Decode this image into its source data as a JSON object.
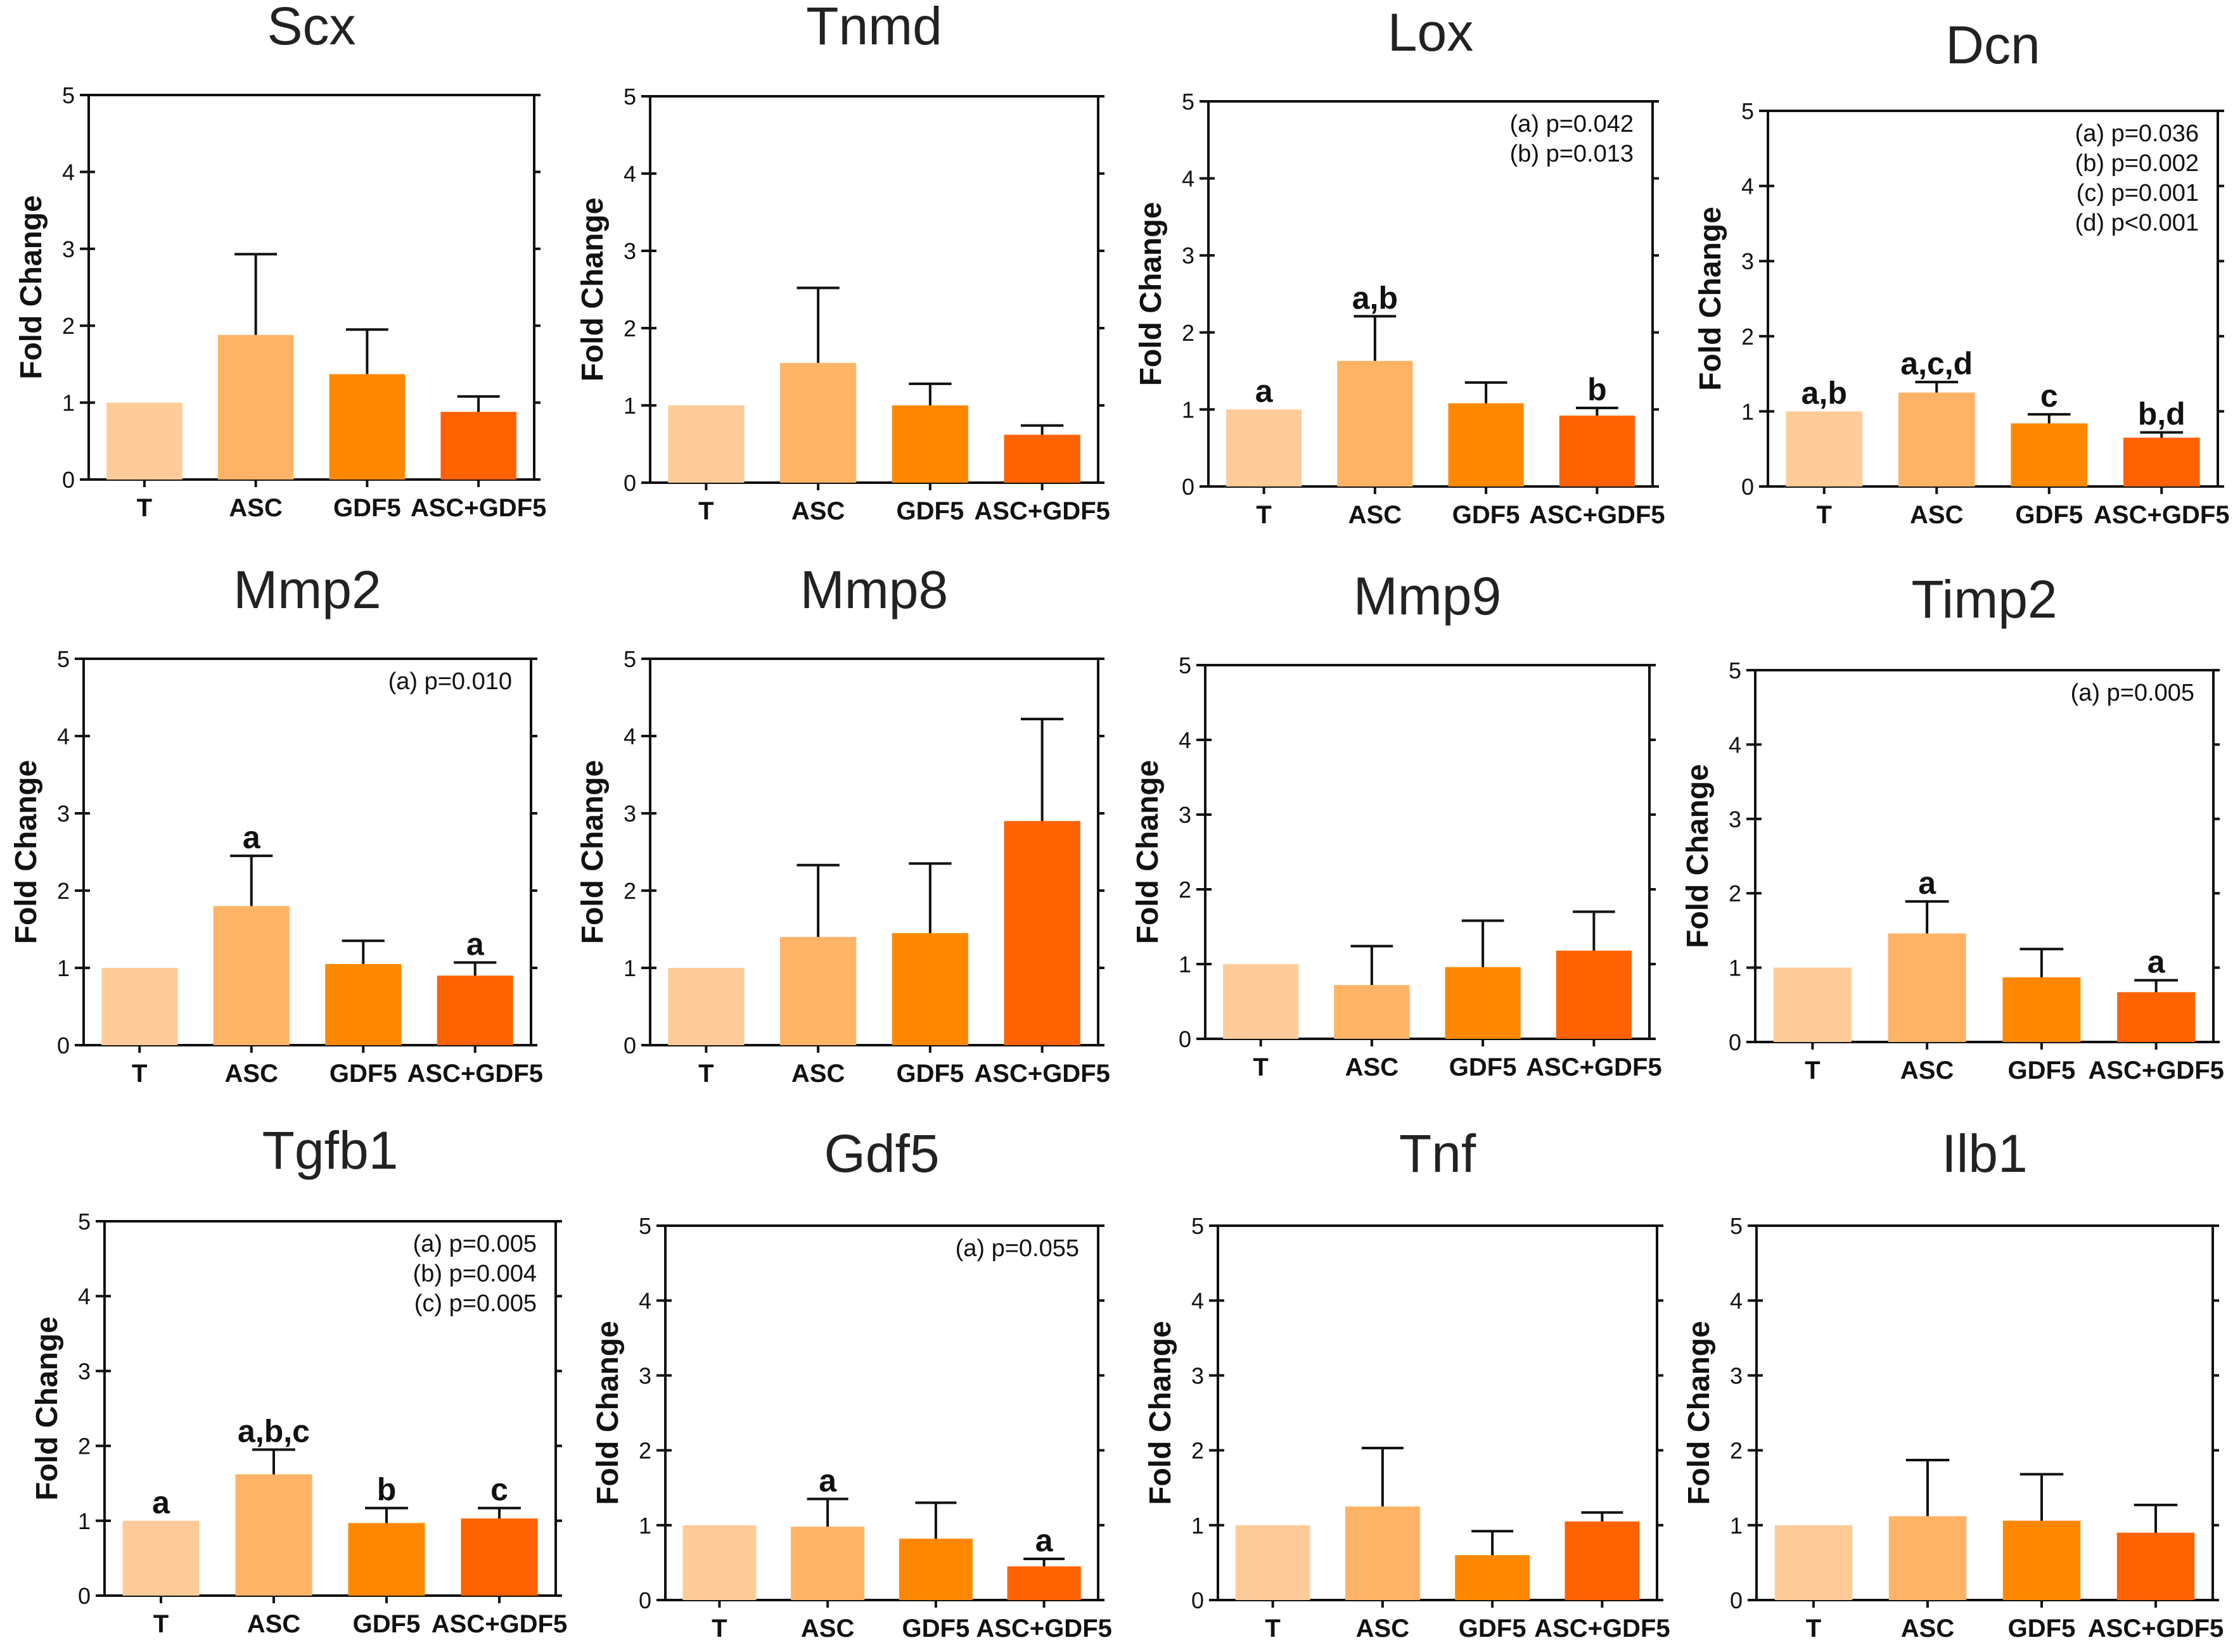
{
  "chart_data": [
    {
      "type": "bar",
      "title": "Scx",
      "ylabel": "Fold Change",
      "ylim": [
        0,
        5
      ],
      "yticks": [
        0,
        1,
        2,
        3,
        4,
        5
      ],
      "categories": [
        "T",
        "ASC",
        "GDF5",
        "ASC+GDF5"
      ],
      "values": [
        1.0,
        1.88,
        1.37,
        0.88
      ],
      "errors": [
        0,
        1.05,
        0.58,
        0.2
      ],
      "colors": [
        "#FFCC99",
        "#FFB366",
        "#FF8800",
        "#FF6200"
      ],
      "labels": [
        "",
        "",
        "",
        ""
      ],
      "annotations": []
    },
    {
      "type": "bar",
      "title": "Tnmd",
      "ylabel": "Fold Change",
      "ylim": [
        0,
        5
      ],
      "yticks": [
        0,
        1,
        2,
        3,
        4,
        5
      ],
      "categories": [
        "T",
        "ASC",
        "GDF5",
        "ASC+GDF5"
      ],
      "values": [
        1.0,
        1.55,
        1.0,
        0.62
      ],
      "errors": [
        0,
        0.97,
        0.28,
        0.12
      ],
      "colors": [
        "#FFCC99",
        "#FFB366",
        "#FF8800",
        "#FF6200"
      ],
      "labels": [
        "",
        "",
        "",
        ""
      ],
      "annotations": []
    },
    {
      "type": "bar",
      "title": "Lox",
      "ylabel": "Fold Change",
      "ylim": [
        0,
        5
      ],
      "yticks": [
        0,
        1,
        2,
        3,
        4,
        5
      ],
      "categories": [
        "T",
        "ASC",
        "GDF5",
        "ASC+GDF5"
      ],
      "values": [
        1.0,
        1.63,
        1.08,
        0.92
      ],
      "errors": [
        0,
        0.58,
        0.27,
        0.1
      ],
      "colors": [
        "#FFCC99",
        "#FFB366",
        "#FF8800",
        "#FF6200"
      ],
      "labels": [
        "a",
        "a,b",
        "",
        "b"
      ],
      "annotations": [
        "(a) p=0.042",
        "(b) p=0.013"
      ]
    },
    {
      "type": "bar",
      "title": "Dcn",
      "ylabel": "Fold Change",
      "ylim": [
        0,
        5
      ],
      "yticks": [
        0,
        1,
        2,
        3,
        4,
        5
      ],
      "categories": [
        "T",
        "ASC",
        "GDF5",
        "ASC+GDF5"
      ],
      "values": [
        1.0,
        1.25,
        0.84,
        0.65
      ],
      "errors": [
        0,
        0.14,
        0.12,
        0.07
      ],
      "colors": [
        "#FFCC99",
        "#FFB366",
        "#FF8800",
        "#FF6200"
      ],
      "labels": [
        "a,b",
        "a,c,d",
        "c",
        "b,d"
      ],
      "annotations": [
        "(a) p=0.036",
        "(b) p=0.002",
        "(c) p=0.001",
        "(d) p<0.001"
      ]
    },
    {
      "type": "bar",
      "title": "Mmp2",
      "ylabel": "Fold Change",
      "ylim": [
        0,
        5
      ],
      "yticks": [
        0,
        1,
        2,
        3,
        4,
        5
      ],
      "categories": [
        "T",
        "ASC",
        "GDF5",
        "ASC+GDF5"
      ],
      "values": [
        1.0,
        1.8,
        1.05,
        0.9
      ],
      "errors": [
        0,
        0.65,
        0.3,
        0.17
      ],
      "colors": [
        "#FFCC99",
        "#FFB366",
        "#FF8800",
        "#FF6200"
      ],
      "labels": [
        "",
        "a",
        "",
        "a"
      ],
      "annotations": [
        "(a) p=0.010"
      ]
    },
    {
      "type": "bar",
      "title": "Mmp8",
      "ylabel": "Fold Change",
      "ylim": [
        0,
        5
      ],
      "yticks": [
        0,
        1,
        2,
        3,
        4,
        5
      ],
      "categories": [
        "T",
        "ASC",
        "GDF5",
        "ASC+GDF5"
      ],
      "values": [
        1.0,
        1.4,
        1.45,
        2.9
      ],
      "errors": [
        0,
        0.93,
        0.9,
        1.32
      ],
      "colors": [
        "#FFCC99",
        "#FFB366",
        "#FF8800",
        "#FF6200"
      ],
      "labels": [
        "",
        "",
        "",
        ""
      ],
      "annotations": []
    },
    {
      "type": "bar",
      "title": "Mmp9",
      "ylabel": "Fold Change",
      "ylim": [
        0,
        5
      ],
      "yticks": [
        0,
        1,
        2,
        3,
        4,
        5
      ],
      "categories": [
        "T",
        "ASC",
        "GDF5",
        "ASC+GDF5"
      ],
      "values": [
        1.0,
        0.72,
        0.96,
        1.18
      ],
      "errors": [
        0,
        0.52,
        0.62,
        0.52
      ],
      "colors": [
        "#FFCC99",
        "#FFB366",
        "#FF8800",
        "#FF6200"
      ],
      "labels": [
        "",
        "",
        "",
        ""
      ],
      "annotations": []
    },
    {
      "type": "bar",
      "title": "Timp2",
      "ylabel": "Fold Change",
      "ylim": [
        0,
        5
      ],
      "yticks": [
        0,
        1,
        2,
        3,
        4,
        5
      ],
      "categories": [
        "T",
        "ASC",
        "GDF5",
        "ASC+GDF5"
      ],
      "values": [
        1.0,
        1.46,
        0.87,
        0.67
      ],
      "errors": [
        0,
        0.43,
        0.38,
        0.16
      ],
      "colors": [
        "#FFCC99",
        "#FFB366",
        "#FF8800",
        "#FF6200"
      ],
      "labels": [
        "",
        "a",
        "",
        "a"
      ],
      "annotations": [
        "(a) p=0.005"
      ]
    },
    {
      "type": "bar",
      "title": "Tgfb1",
      "ylabel": "Fold Change",
      "ylim": [
        0,
        5
      ],
      "yticks": [
        0,
        1,
        2,
        3,
        4,
        5
      ],
      "categories": [
        "T",
        "ASC",
        "GDF5",
        "ASC+GDF5"
      ],
      "values": [
        1.0,
        1.62,
        0.97,
        1.03
      ],
      "errors": [
        0,
        0.33,
        0.2,
        0.14
      ],
      "colors": [
        "#FFCC99",
        "#FFB366",
        "#FF8800",
        "#FF6200"
      ],
      "labels": [
        "a",
        "a,b,c",
        "b",
        "c"
      ],
      "annotations": [
        "(a) p=0.005",
        "(b) p=0.004",
        "(c) p=0.005"
      ]
    },
    {
      "type": "bar",
      "title": "Gdf5",
      "ylabel": "Fold Change",
      "ylim": [
        0,
        5
      ],
      "yticks": [
        0,
        1,
        2,
        3,
        4,
        5
      ],
      "categories": [
        "T",
        "ASC",
        "GDF5",
        "ASC+GDF5"
      ],
      "values": [
        1.0,
        0.98,
        0.82,
        0.45
      ],
      "errors": [
        0,
        0.37,
        0.48,
        0.1
      ],
      "colors": [
        "#FFCC99",
        "#FFB366",
        "#FF8800",
        "#FF6200"
      ],
      "labels": [
        "",
        "a",
        "",
        "a"
      ],
      "annotations": [
        "(a) p=0.055"
      ]
    },
    {
      "type": "bar",
      "title": "Tnf",
      "ylabel": "Fold Change",
      "ylim": [
        0,
        5
      ],
      "yticks": [
        0,
        1,
        2,
        3,
        4,
        5
      ],
      "categories": [
        "T",
        "ASC",
        "GDF5",
        "ASC+GDF5"
      ],
      "values": [
        1.0,
        1.25,
        0.6,
        1.05
      ],
      "errors": [
        0,
        0.78,
        0.32,
        0.12
      ],
      "colors": [
        "#FFCC99",
        "#FFB366",
        "#FF8800",
        "#FF6200"
      ],
      "labels": [
        "",
        "",
        "",
        ""
      ],
      "annotations": []
    },
    {
      "type": "bar",
      "title": "Ilb1",
      "ylabel": "Fold Change",
      "ylim": [
        0,
        5
      ],
      "yticks": [
        0,
        1,
        2,
        3,
        4,
        5
      ],
      "categories": [
        "T",
        "ASC",
        "GDF5",
        "ASC+GDF5"
      ],
      "values": [
        1.0,
        1.12,
        1.06,
        0.9
      ],
      "errors": [
        0,
        0.75,
        0.62,
        0.37
      ],
      "colors": [
        "#FFCC99",
        "#FFB366",
        "#FF8800",
        "#FF6200"
      ],
      "labels": [
        "",
        "",
        "",
        ""
      ],
      "annotations": []
    }
  ]
}
